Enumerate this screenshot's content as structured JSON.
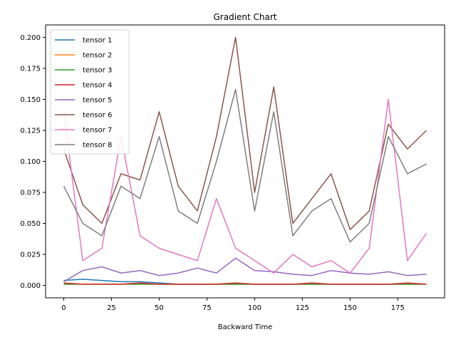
{
  "chart_data": {
    "type": "line",
    "title": "Gradient Chart",
    "xlabel": "Backward Time",
    "ylabel": "",
    "xlim": [
      -9.5,
      199.5
    ],
    "ylim": [
      -0.01,
      0.21
    ],
    "xticks": [
      0,
      25,
      50,
      75,
      100,
      125,
      150,
      175
    ],
    "xtick_labels": [
      "0",
      "25",
      "50",
      "75",
      "100",
      "125",
      "150",
      "175"
    ],
    "yticks": [
      0.0,
      0.025,
      0.05,
      0.075,
      0.1,
      0.125,
      0.15,
      0.175,
      0.2
    ],
    "ytick_labels": [
      "0.000",
      "0.025",
      "0.050",
      "0.075",
      "0.100",
      "0.125",
      "0.150",
      "0.175",
      "0.200"
    ],
    "legend_position": "top-left",
    "grid": false,
    "x_start": 0,
    "x_end": 190,
    "series": [
      {
        "name": "tensor 1",
        "color": "#1f77b4",
        "values": [
          0.004,
          0.005,
          0.004,
          0.003,
          0.003,
          0.002,
          0.001,
          0.001,
          0.001,
          0.001,
          0.001,
          0.001,
          0.001,
          0.001,
          0.001,
          0.001,
          0.001,
          0.001,
          0.001,
          0.001
        ]
      },
      {
        "name": "tensor 2",
        "color": "#ff7f0e",
        "values": [
          0.001,
          0.001,
          0.001,
          0.001,
          0.001,
          0.001,
          0.001,
          0.001,
          0.001,
          0.001,
          0.001,
          0.001,
          0.001,
          0.001,
          0.001,
          0.001,
          0.001,
          0.001,
          0.001,
          0.001
        ]
      },
      {
        "name": "tensor 3",
        "color": "#2ca02c",
        "values": [
          0.001,
          0.001,
          0.001,
          0.001,
          0.001,
          0.001,
          0.001,
          0.001,
          0.001,
          0.001,
          0.001,
          0.001,
          0.001,
          0.001,
          0.001,
          0.001,
          0.001,
          0.001,
          0.001,
          0.001
        ]
      },
      {
        "name": "tensor 4",
        "color": "#d62728",
        "values": [
          0.002,
          0.001,
          0.001,
          0.001,
          0.002,
          0.001,
          0.001,
          0.001,
          0.001,
          0.002,
          0.001,
          0.001,
          0.001,
          0.002,
          0.001,
          0.001,
          0.001,
          0.001,
          0.002,
          0.001
        ]
      },
      {
        "name": "tensor 5",
        "color": "#9467bd",
        "values": [
          0.003,
          0.012,
          0.015,
          0.01,
          0.012,
          0.008,
          0.01,
          0.014,
          0.01,
          0.022,
          0.012,
          0.011,
          0.009,
          0.008,
          0.012,
          0.01,
          0.009,
          0.011,
          0.008,
          0.009
        ]
      },
      {
        "name": "tensor 6",
        "color": "#8c564b",
        "values": [
          0.11,
          0.065,
          0.05,
          0.09,
          0.085,
          0.14,
          0.08,
          0.06,
          0.12,
          0.2,
          0.075,
          0.16,
          0.05,
          0.07,
          0.09,
          0.045,
          0.06,
          0.13,
          0.11,
          0.125
        ]
      },
      {
        "name": "tensor 7",
        "color": "#e377c2",
        "values": [
          0.14,
          0.02,
          0.03,
          0.12,
          0.04,
          0.03,
          0.025,
          0.02,
          0.07,
          0.03,
          0.02,
          0.01,
          0.025,
          0.015,
          0.02,
          0.01,
          0.03,
          0.15,
          0.02,
          0.042
        ]
      },
      {
        "name": "tensor 8",
        "color": "#7f7f7f",
        "values": [
          0.08,
          0.05,
          0.04,
          0.08,
          0.07,
          0.12,
          0.06,
          0.05,
          0.1,
          0.158,
          0.06,
          0.14,
          0.04,
          0.06,
          0.07,
          0.035,
          0.05,
          0.12,
          0.09,
          0.098
        ]
      }
    ]
  }
}
